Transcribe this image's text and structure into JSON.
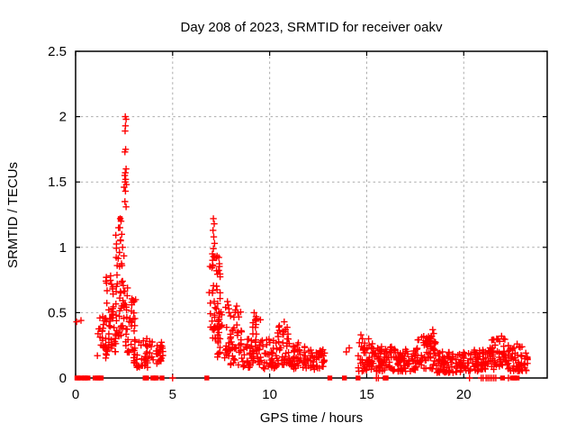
{
  "window": {
    "background": "#ffffff"
  },
  "chart_data": {
    "type": "scatter",
    "title": "Day 208 of 2023, SRMTID for receiver oakv",
    "xlabel": "GPS time / hours",
    "ylabel": "SRMTID / TECUs",
    "xlim": [
      0,
      24.3
    ],
    "ylim": [
      0,
      2.5
    ],
    "xticks": [
      0,
      5,
      10,
      15,
      20
    ],
    "yticks": [
      0,
      0.5,
      1,
      1.5,
      2,
      2.5
    ],
    "grid": true,
    "legend_position": "none",
    "marker": "plus",
    "marker_size_px": 7,
    "colors": {
      "marker": "#ff0000",
      "grid": "#ababab",
      "axis": "#000000",
      "text": "#000000"
    },
    "seed": 208,
    "density_bias": 1.25,
    "notable_points": [
      [
        0.05,
        0.43
      ],
      [
        0.28,
        0.44
      ],
      [
        2.56,
        2.0
      ],
      [
        2.6,
        1.98
      ],
      [
        2.57,
        1.93
      ],
      [
        2.55,
        1.89
      ],
      [
        2.58,
        1.75
      ],
      [
        2.54,
        1.73
      ],
      [
        2.6,
        1.6
      ],
      [
        2.56,
        1.57
      ],
      [
        2.53,
        1.55
      ],
      [
        2.58,
        1.52
      ],
      [
        2.55,
        1.5
      ],
      [
        2.62,
        1.48
      ],
      [
        2.5,
        1.46
      ],
      [
        2.57,
        1.43
      ],
      [
        2.54,
        1.35
      ],
      [
        2.6,
        1.31
      ],
      [
        2.3,
        1.22
      ],
      [
        2.34,
        1.2
      ],
      [
        2.28,
        1.15
      ],
      [
        2.38,
        1.1
      ],
      [
        2.32,
        1.05
      ],
      [
        2.42,
        1.0
      ],
      [
        7.1,
        1.22
      ],
      [
        7.14,
        1.18
      ],
      [
        7.08,
        1.13
      ],
      [
        7.12,
        1.08
      ],
      [
        7.16,
        1.03
      ],
      [
        7.1,
        0.99
      ],
      [
        7.05,
        0.95
      ],
      [
        7.18,
        0.92
      ],
      [
        8.3,
        0.55
      ],
      [
        8.24,
        0.52
      ],
      [
        8.36,
        0.5
      ],
      [
        9.2,
        0.5
      ],
      [
        9.3,
        0.47
      ],
      [
        10.75,
        0.43
      ],
      [
        10.5,
        0.4
      ],
      [
        10.82,
        0.37
      ],
      [
        11.8,
        0.24
      ],
      [
        13.95,
        0.2
      ],
      [
        14.1,
        0.23
      ],
      [
        14.7,
        0.33
      ],
      [
        14.78,
        0.3
      ],
      [
        14.62,
        0.27
      ],
      [
        15.1,
        0.3
      ],
      [
        18.4,
        0.37
      ],
      [
        18.45,
        0.34
      ],
      [
        18.35,
        0.32
      ],
      [
        18.3,
        0.3
      ],
      [
        21.95,
        0.32
      ],
      [
        22.05,
        0.3
      ],
      [
        21.85,
        0.28
      ],
      [
        22.75,
        0.26
      ],
      [
        22.85,
        0.24
      ]
    ],
    "square_points": [
      [
        1.85,
        0.47
      ],
      [
        2.3,
        1.22
      ]
    ],
    "zero_axis_squares": [
      0.07,
      0.14,
      0.3,
      0.43,
      0.52,
      0.64,
      1.0,
      1.12,
      1.24,
      1.32,
      3.58,
      3.66,
      3.98,
      4.08,
      4.16,
      4.45,
      6.76,
      13.1,
      13.85,
      14.55,
      15.95,
      16.0,
      22.0,
      22.5,
      22.62,
      22.75
    ],
    "zero_axis_plusses": [
      5.0,
      15.5,
      15.6,
      20.3,
      20.9,
      21.0,
      21.15,
      21.25,
      21.35,
      21.45,
      21.55,
      21.65,
      22.3
    ],
    "clusters_format": [
      "x_start",
      "x_end",
      "y_min",
      "y_max",
      "count"
    ],
    "clusters": [
      [
        1.12,
        1.6,
        0.15,
        0.48,
        26
      ],
      [
        1.55,
        2.1,
        0.2,
        0.85,
        46
      ],
      [
        2.05,
        2.55,
        0.3,
        1.15,
        46
      ],
      [
        2.55,
        3.1,
        0.15,
        0.75,
        40
      ],
      [
        3.0,
        3.75,
        0.08,
        0.32,
        34
      ],
      [
        3.8,
        4.5,
        0.1,
        0.3,
        28
      ],
      [
        6.88,
        7.45,
        0.3,
        0.95,
        52
      ],
      [
        7.3,
        7.95,
        0.15,
        0.6,
        40
      ],
      [
        7.95,
        8.6,
        0.1,
        0.52,
        38
      ],
      [
        8.6,
        9.15,
        0.08,
        0.3,
        28
      ],
      [
        9.1,
        9.55,
        0.1,
        0.46,
        32
      ],
      [
        9.55,
        10.35,
        0.07,
        0.3,
        36
      ],
      [
        10.35,
        11.05,
        0.1,
        0.4,
        38
      ],
      [
        11.0,
        12.0,
        0.07,
        0.27,
        44
      ],
      [
        12.0,
        12.85,
        0.06,
        0.22,
        38
      ],
      [
        14.55,
        15.4,
        0.05,
        0.27,
        48
      ],
      [
        15.4,
        16.4,
        0.05,
        0.24,
        58
      ],
      [
        16.4,
        17.6,
        0.05,
        0.22,
        68
      ],
      [
        17.6,
        18.55,
        0.07,
        0.34,
        56
      ],
      [
        18.55,
        19.9,
        0.04,
        0.2,
        76
      ],
      [
        19.9,
        21.3,
        0.05,
        0.22,
        76
      ],
      [
        21.3,
        22.3,
        0.06,
        0.3,
        56
      ],
      [
        22.3,
        23.3,
        0.05,
        0.24,
        52
      ]
    ]
  }
}
